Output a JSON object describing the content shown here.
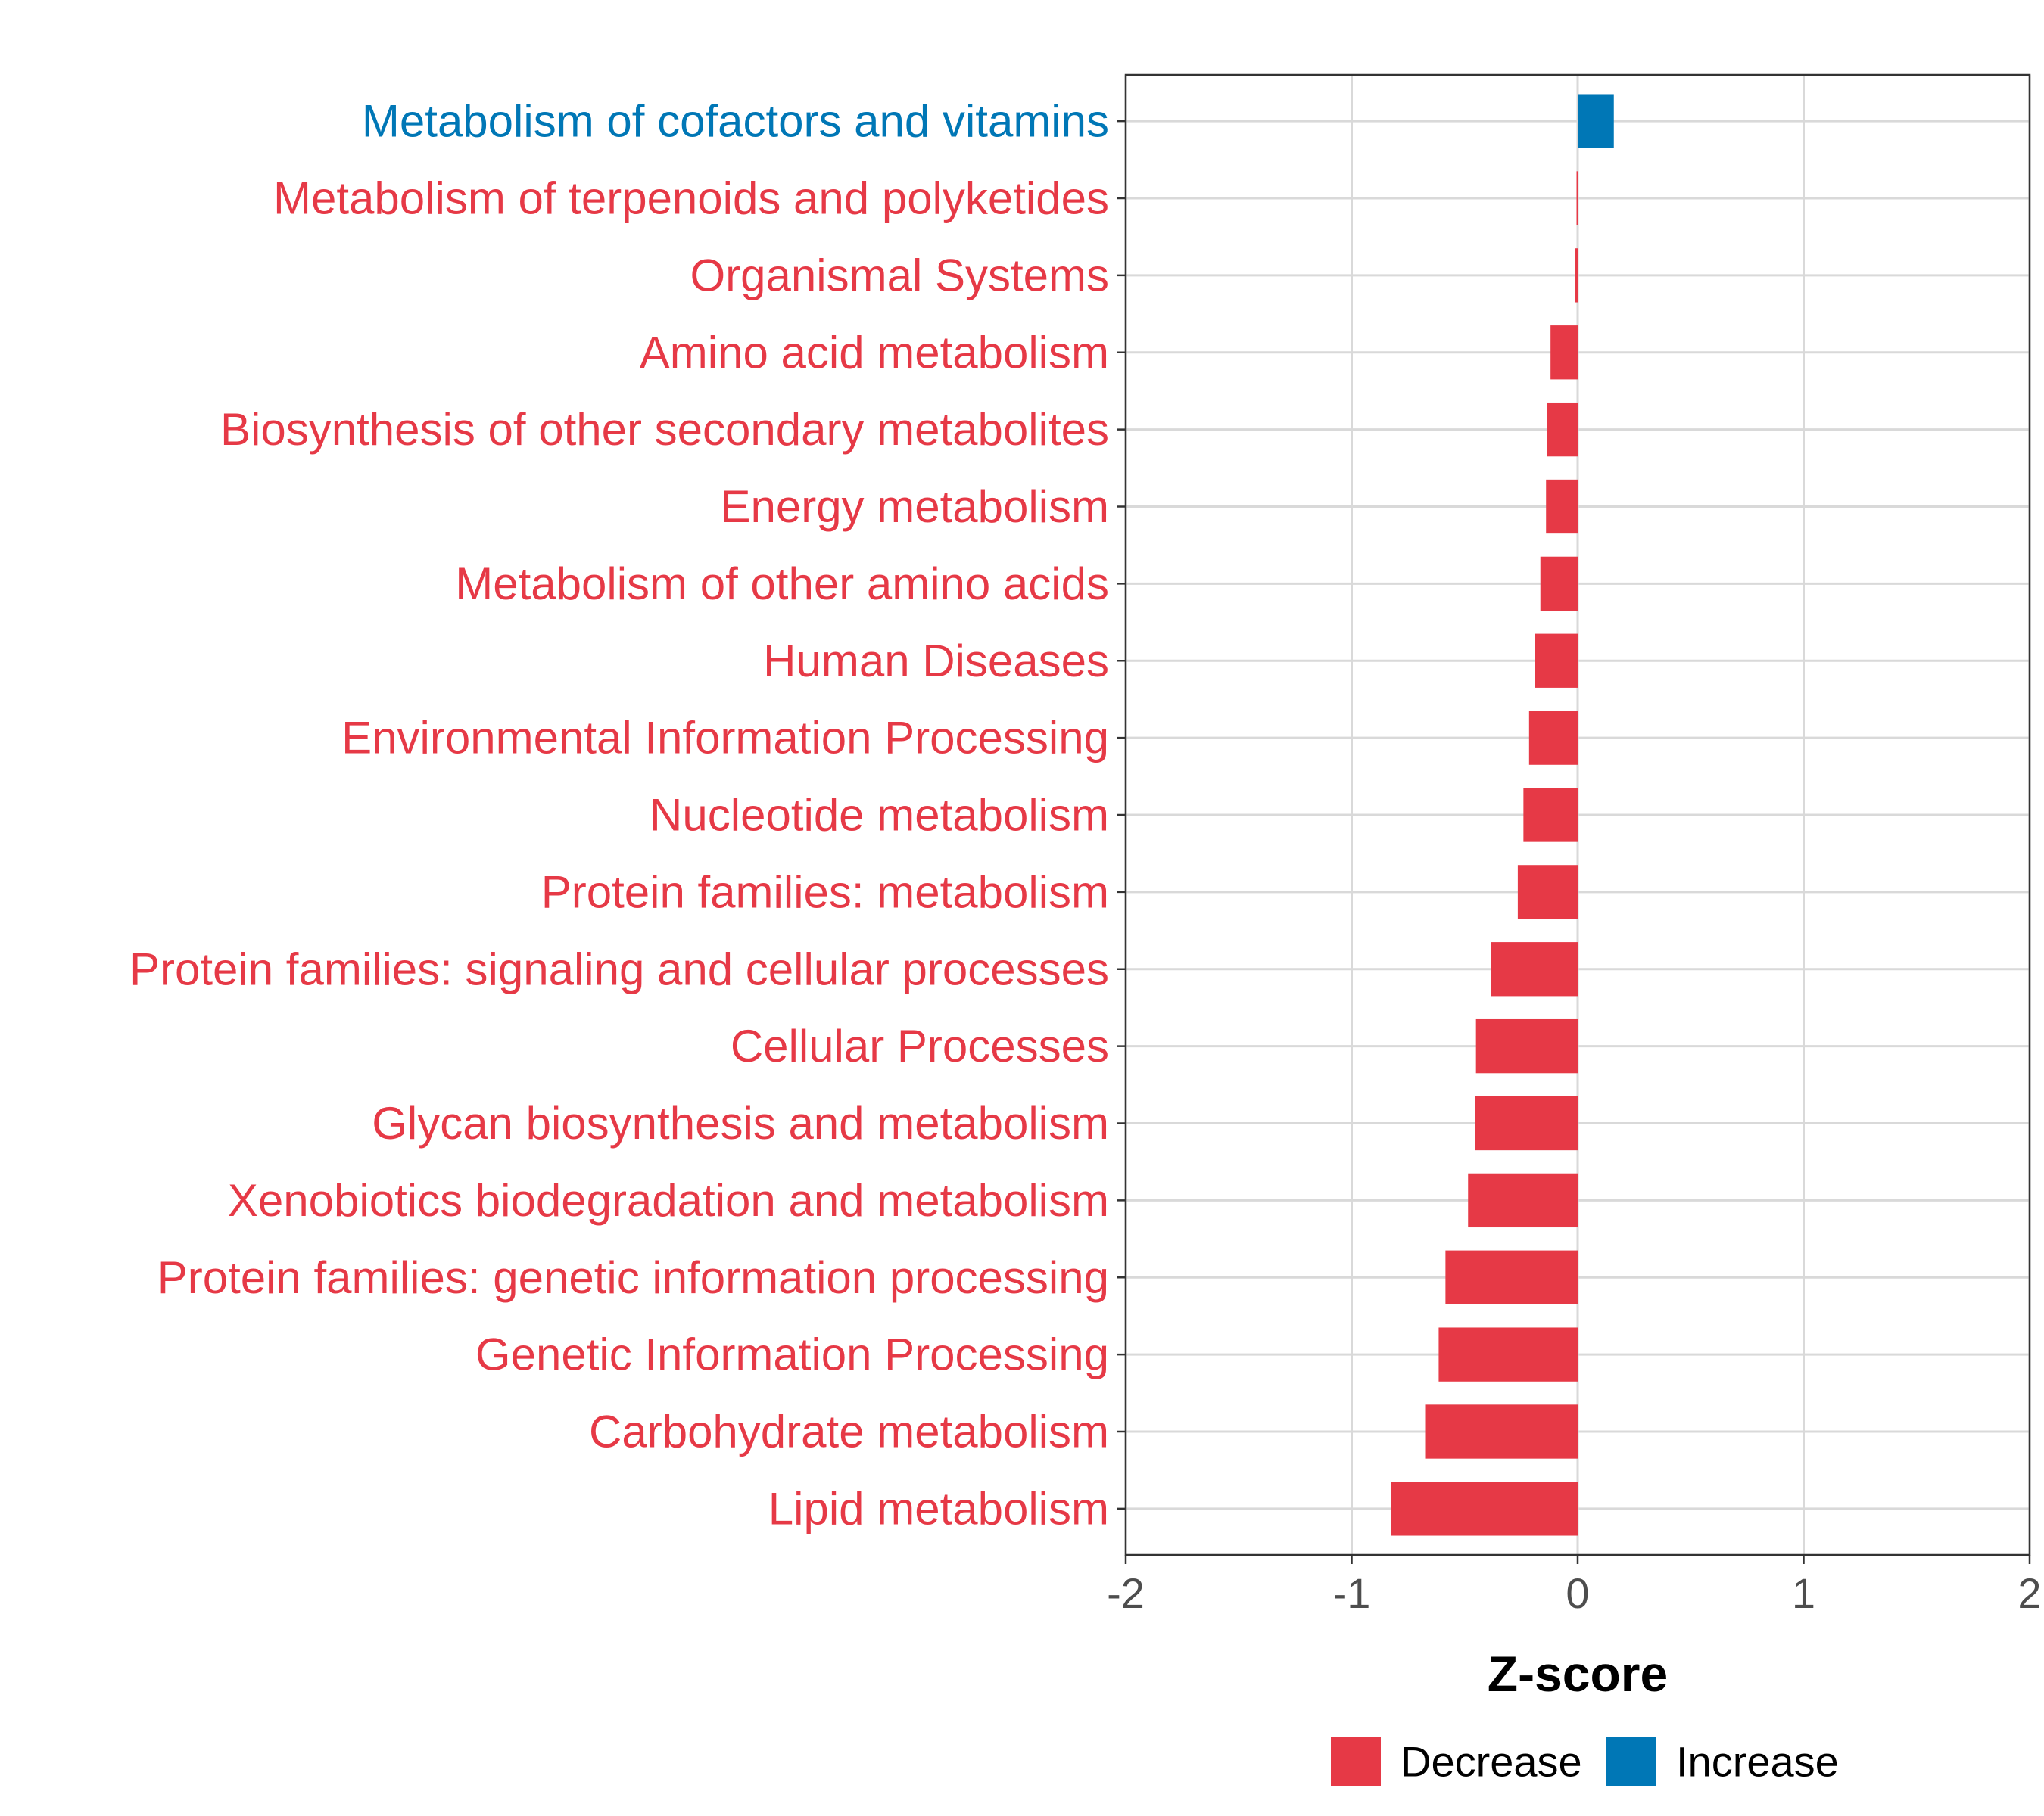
{
  "colors": {
    "decrease": "#E63946",
    "increase": "#0077B6",
    "grid": "#d9d9d9",
    "axis": "#333333"
  },
  "chart_data": {
    "type": "bar",
    "orientation": "horizontal",
    "title": "",
    "xlabel": "Z-score",
    "ylabel": "",
    "xlim": [
      -2,
      2
    ],
    "xticks": [
      -2,
      -1,
      0,
      1,
      2
    ],
    "xtick_labels": [
      "-2",
      "-1",
      "0",
      "1",
      "2"
    ],
    "grid": true,
    "legend_position": "bottom",
    "legend": [
      {
        "key": "decrease",
        "label": "Decrease"
      },
      {
        "key": "increase",
        "label": "Increase"
      }
    ],
    "categories": [
      "Metabolism of cofactors and vitamins",
      "Metabolism of terpenoids and polyketides",
      "Organismal Systems",
      "Amino acid metabolism",
      "Biosynthesis of other secondary metabolites",
      "Energy metabolism",
      "Metabolism of other amino acids",
      "Human Diseases",
      "Environmental Information Processing",
      "Nucleotide metabolism",
      "Protein families: metabolism",
      "Protein families: signaling and cellular processes",
      "Cellular Processes",
      "Glycan biosynthesis and metabolism",
      "Xenobiotics biodegradation and metabolism",
      "Protein families: genetic information processing",
      "Genetic Information Processing",
      "Carbohydrate metabolism",
      "Lipid metabolism"
    ],
    "values": [
      0.16,
      -0.005,
      -0.01,
      -0.12,
      -0.135,
      -0.14,
      -0.165,
      -0.19,
      -0.215,
      -0.24,
      -0.265,
      -0.385,
      -0.45,
      -0.455,
      -0.485,
      -0.585,
      -0.615,
      -0.675,
      -0.825
    ],
    "groups": [
      "increase",
      "decrease",
      "decrease",
      "decrease",
      "decrease",
      "decrease",
      "decrease",
      "decrease",
      "decrease",
      "decrease",
      "decrease",
      "decrease",
      "decrease",
      "decrease",
      "decrease",
      "decrease",
      "decrease",
      "decrease",
      "decrease"
    ]
  }
}
